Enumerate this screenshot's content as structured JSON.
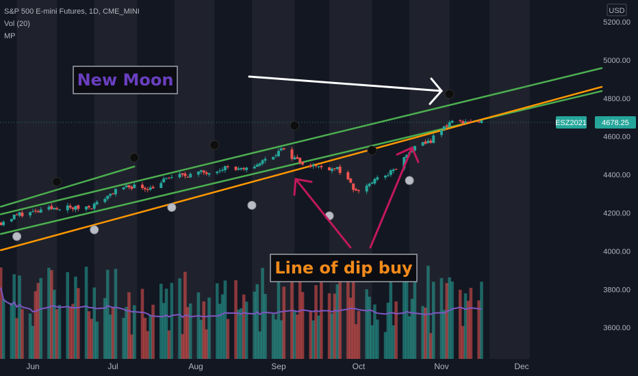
{
  "header": {
    "symbol_title": "S&P 500 E-mini Futures, 1D, CME_MINI",
    "indicator_vol": "Vol (20)",
    "indicator_mp": "MP"
  },
  "currency_button": "USD",
  "price_tag": {
    "symbol": "ESZ2021",
    "price": "4678.25"
  },
  "annotations": {
    "new_moon": "New Moon",
    "dip_buy": "Line of dip buy"
  },
  "colors": {
    "background": "#131722",
    "shade": "#1f222c",
    "up_candle": "#26a69a",
    "down_candle": "#ef5350",
    "green_line": "#4caf50",
    "orange_line": "#ff9800",
    "volume_ma": "#7e57c2",
    "arrow": "#c2185b",
    "tag_bg": "#26a69a"
  },
  "chart_data": {
    "type": "candlestick",
    "title": "S&P 500 E-mini Futures, 1D, CME_MINI",
    "y_ticks": [
      "5200.00",
      "5000.00",
      "4800.00",
      "4600.00",
      "4400.00",
      "4200.00",
      "4000.00",
      "3800.00",
      "3600.00"
    ],
    "x_ticks": [
      "Jun",
      "Jul",
      "Aug",
      "Sep",
      "Oct",
      "Nov",
      "Dec"
    ],
    "ylim": [
      3600,
      5200
    ],
    "last_price": 4678.25,
    "close_path": [
      [
        "May 20",
        4150
      ],
      [
        "May 27",
        4195
      ],
      [
        "Jun 03",
        4205
      ],
      [
        "Jun 10",
        4230
      ],
      [
        "Jun 17",
        4225
      ],
      [
        "Jun 24",
        4240
      ],
      [
        "Jul 01",
        4310
      ],
      [
        "Jul 08",
        4340
      ],
      [
        "Jul 15",
        4330
      ],
      [
        "Jul 22",
        4385
      ],
      [
        "Jul 29",
        4400
      ],
      [
        "Aug 05",
        4415
      ],
      [
        "Aug 12",
        4440
      ],
      [
        "Aug 19",
        4420
      ],
      [
        "Aug 26",
        4470
      ],
      [
        "Sep 02",
        4530
      ],
      [
        "Sep 09",
        4470
      ],
      [
        "Sep 16",
        4440
      ],
      [
        "Sep 23",
        4435
      ],
      [
        "Sep 30",
        4310
      ],
      [
        "Oct 07",
        4370
      ],
      [
        "Oct 14",
        4420
      ],
      [
        "Oct 21",
        4530
      ],
      [
        "Oct 28",
        4580
      ],
      [
        "Nov 04",
        4675
      ],
      [
        "Nov 11",
        4680
      ],
      [
        "Nov 16",
        4670
      ]
    ],
    "new_moons": [
      [
        "Jun 10",
        4363
      ],
      [
        "Jul 09",
        4490
      ],
      [
        "Aug 08",
        4555
      ],
      [
        "Sep 07",
        4657
      ],
      [
        "Oct 06",
        4527
      ],
      [
        "Nov 04",
        4822
      ]
    ],
    "full_moons": [
      [
        "May 26",
        4077
      ],
      [
        "Jun 24",
        4112
      ],
      [
        "Jul 23",
        4229
      ],
      [
        "Aug 22",
        4240
      ],
      [
        "Sep 20",
        4185
      ],
      [
        "Oct 20",
        4370
      ]
    ],
    "trend_lines": [
      {
        "name": "green upper",
        "points": [
          [
            "May 20",
            4233
          ],
          [
            "Jul 09",
            4443
          ]
        ]
      },
      {
        "name": "green channel",
        "points": [
          [
            "May 20",
            4193
          ],
          [
            "Dec 31",
            4958
          ]
        ]
      },
      {
        "name": "green mid",
        "points": [
          [
            "May 20",
            4090
          ],
          [
            "Dec 31",
            4838
          ]
        ]
      },
      {
        "name": "orange dip-buy",
        "points": [
          [
            "May 20",
            4005
          ],
          [
            "Dec 31",
            4860
          ]
        ]
      }
    ]
  }
}
